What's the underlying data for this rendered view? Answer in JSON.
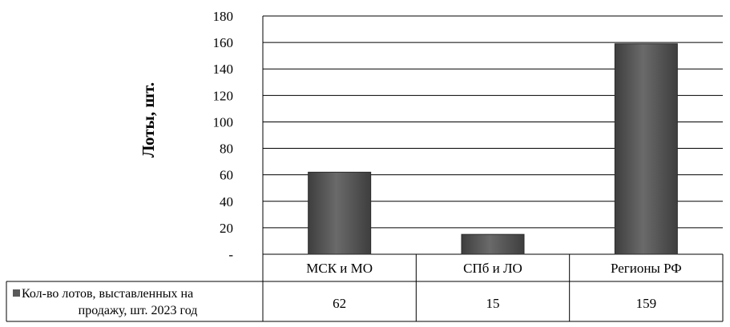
{
  "chart_data": {
    "type": "bar",
    "categories": [
      "МСК и МО",
      "СПб и ЛО",
      "Регионы РФ"
    ],
    "series": [
      {
        "name": "Кол-во лотов, выставленных на продажу, шт. 2023 год",
        "values": [
          62,
          15,
          159
        ]
      }
    ],
    "ylabel": "Лоты, шт.",
    "xlabel": "",
    "title": "",
    "ylim": [
      0,
      180
    ],
    "yticks": [
      "-",
      "20",
      "40",
      "60",
      "80",
      "100",
      "120",
      "140",
      "160",
      "180"
    ],
    "grid": true,
    "data_table": true,
    "legend_lines": [
      "Кол-во лотов, выставленных на",
      "продажу, шт. 2023 год"
    ],
    "colors": {
      "bar": "#5a5a5a",
      "bar_light": "#7a7a7a",
      "bar_dark": "#3a3a3a",
      "grid": "#000000"
    }
  }
}
